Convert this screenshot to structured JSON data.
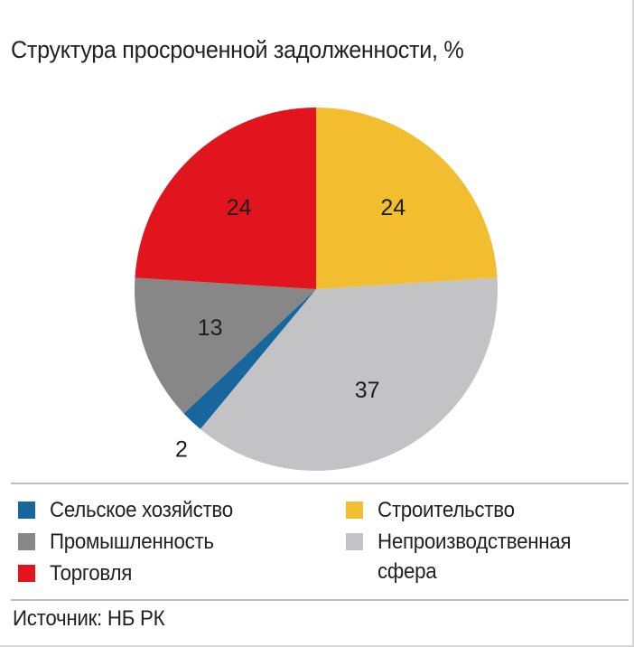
{
  "chart_data": {
    "type": "pie",
    "title": "Структура просроченной задолженности, %",
    "unit": "%",
    "slices": [
      {
        "label": "Строительство",
        "value": 24,
        "color": "#f2be30"
      },
      {
        "label": "Непроизводственная сфера",
        "value": 37,
        "color": "#c3c3c5"
      },
      {
        "label": "Сельское хозяйство",
        "value": 2,
        "color": "#17669e"
      },
      {
        "label": "Промышленность",
        "value": 13,
        "color": "#878787"
      },
      {
        "label": "Торговля",
        "value": 24,
        "color": "#e2141d"
      }
    ],
    "start_angle_deg": 90,
    "direction": "clockwise",
    "legend_position": "bottom",
    "source": "Источник: НБ РК"
  }
}
